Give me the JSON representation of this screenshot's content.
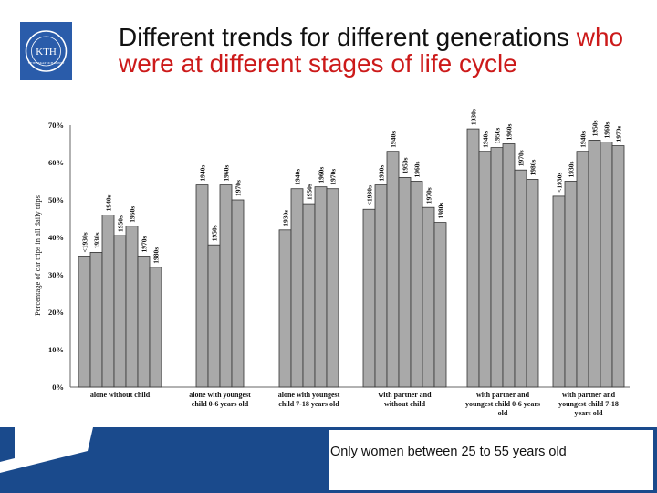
{
  "logo": {
    "text": "KTH",
    "subtext": "VETENSKAP OCH KONST"
  },
  "title": {
    "black": "Different trends for different generations",
    "red": "who were at different stages of life cycle"
  },
  "footer": {
    "note": "Only women between 25 to 55 years old"
  },
  "colors": {
    "bar": "#a9a9a9",
    "bar_stroke": "#333333",
    "title_red": "#cc1a1a",
    "band": "#1a4a8c"
  },
  "chart_data": {
    "type": "bar",
    "title": "",
    "xlabel": "",
    "ylabel": "Percentage of car trips in all daily trips",
    "ylim": [
      0,
      70
    ],
    "yticks": [
      "0%",
      "10%",
      "20%",
      "30%",
      "40%",
      "50%",
      "60%",
      "70%"
    ],
    "groups": [
      {
        "label_lines": [
          "alone without child"
        ],
        "bars": [
          {
            "label": "<1930s",
            "value": 35
          },
          {
            "label": "1930s",
            "value": 36
          },
          {
            "label": "1940s",
            "value": 46
          },
          {
            "label": "1950s",
            "value": 40.5
          },
          {
            "label": "1960s",
            "value": 43
          },
          {
            "label": "1970s",
            "value": 35
          },
          {
            "label": "1980s",
            "value": 32
          }
        ]
      },
      {
        "label_lines": [
          "alone with youngest",
          "child 0-6 years old"
        ],
        "bars": [
          {
            "label": "1940s",
            "value": 54
          },
          {
            "label": "1950s",
            "value": 38
          },
          {
            "label": "1960s",
            "value": 54
          },
          {
            "label": "1970s",
            "value": 50
          }
        ]
      },
      {
        "label_lines": [
          "alone with youngest",
          "child 7-18 years old"
        ],
        "bars": [
          {
            "label": "1930s",
            "value": 42
          },
          {
            "label": "1940s",
            "value": 53
          },
          {
            "label": "1950s",
            "value": 49
          },
          {
            "label": "1960s",
            "value": 53.5
          },
          {
            "label": "1970s",
            "value": 53
          }
        ]
      },
      {
        "label_lines": [
          "with partner and",
          "without child"
        ],
        "bars": [
          {
            "label": "<1930s",
            "value": 47.5
          },
          {
            "label": "1930s",
            "value": 54
          },
          {
            "label": "1940s",
            "value": 63
          },
          {
            "label": "1950s",
            "value": 56
          },
          {
            "label": "1960s",
            "value": 55
          },
          {
            "label": "1970s",
            "value": 48
          },
          {
            "label": "1980s",
            "value": 44
          }
        ]
      },
      {
        "label_lines": [
          "with partner and",
          "youngest child 0-6 years",
          "old"
        ],
        "bars": [
          {
            "label": "1930s",
            "value": 69
          },
          {
            "label": "1940s",
            "value": 63
          },
          {
            "label": "1950s",
            "value": 64
          },
          {
            "label": "1960s",
            "value": 65
          },
          {
            "label": "1970s",
            "value": 58
          },
          {
            "label": "1980s",
            "value": 55.5
          }
        ]
      },
      {
        "label_lines": [
          "with partner and",
          "youngest child 7-18",
          "years old"
        ],
        "bars": [
          {
            "label": "<1930s",
            "value": 51
          },
          {
            "label": "1930s",
            "value": 55
          },
          {
            "label": "1940s",
            "value": 63
          },
          {
            "label": "1950s",
            "value": 66
          },
          {
            "label": "1960s",
            "value": 65.5
          },
          {
            "label": "1970s",
            "value": 64.5
          }
        ]
      }
    ]
  }
}
